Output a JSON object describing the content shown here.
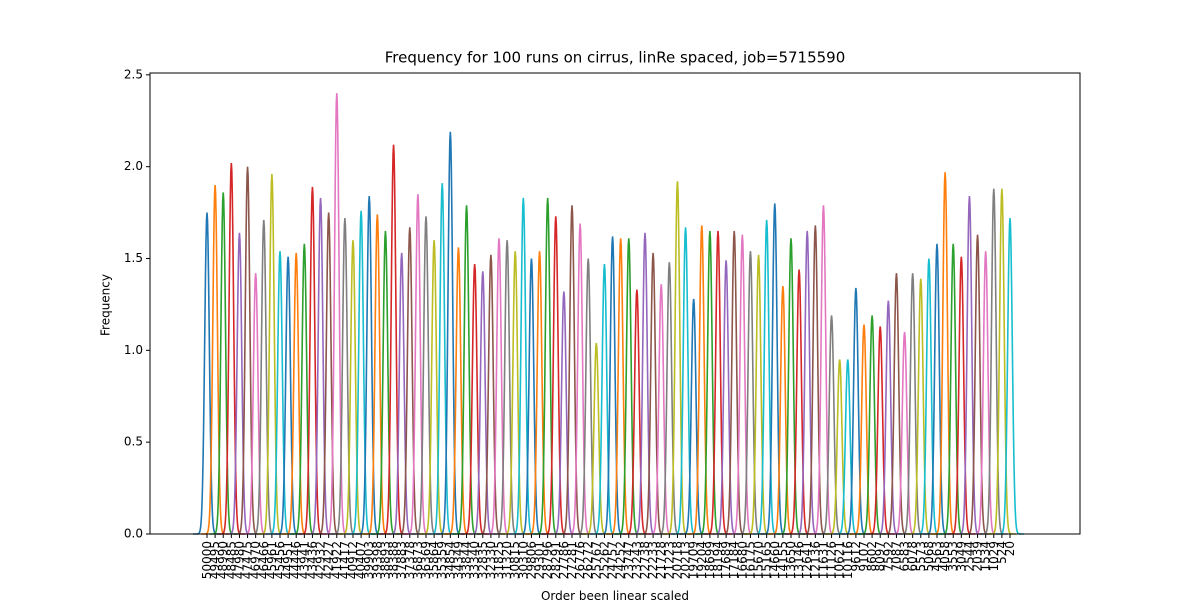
{
  "chart_data": {
    "type": "line",
    "title": "Frequency for 100 runs on cirrus, linRe spaced, job=5715590",
    "xlabel": "Order been linear scaled",
    "ylabel": "Frequency",
    "categories": [
      "50000",
      "49495",
      "48990",
      "48485",
      "47980",
      "47475",
      "46970",
      "46466",
      "45961",
      "45456",
      "44951",
      "44446",
      "43941",
      "43436",
      "42932",
      "42427",
      "41922",
      "41417",
      "40912",
      "40407",
      "39903",
      "39398",
      "38893",
      "38388",
      "37883",
      "37378",
      "36873",
      "36369",
      "35864",
      "35359",
      "34854",
      "34349",
      "33844",
      "33340",
      "32835",
      "32330",
      "31825",
      "31320",
      "30815",
      "30310",
      "29806",
      "29301",
      "28796",
      "28291",
      "27786",
      "27281",
      "26776",
      "26272",
      "25767",
      "25262",
      "24757",
      "24252",
      "23747",
      "23243",
      "22738",
      "22233",
      "21728",
      "21223",
      "20718",
      "20213",
      "19709",
      "19204",
      "18699",
      "18194",
      "17689",
      "17184",
      "16680",
      "16175",
      "15670",
      "15165",
      "14660",
      "14155",
      "13650",
      "13146",
      "12641",
      "12136",
      "11631",
      "11126",
      "10621",
      "10116",
      "9612",
      "9107",
      "8602",
      "8097",
      "7592",
      "7087",
      "6583",
      "6078",
      "5573",
      "5068",
      "4563",
      "4058",
      "3553",
      "3049",
      "2544",
      "2039",
      "1534",
      "1029",
      "524",
      "20"
    ],
    "values": [
      1.75,
      1.9,
      1.86,
      2.02,
      1.64,
      2.0,
      1.42,
      1.71,
      1.96,
      1.54,
      1.51,
      1.53,
      1.58,
      1.89,
      1.83,
      1.75,
      2.4,
      1.72,
      1.6,
      1.76,
      1.84,
      1.74,
      1.65,
      2.12,
      1.53,
      1.67,
      1.85,
      1.73,
      1.6,
      1.91,
      2.19,
      1.56,
      1.79,
      1.47,
      1.43,
      1.52,
      1.61,
      1.6,
      1.54,
      1.83,
      1.5,
      1.54,
      1.83,
      1.73,
      1.32,
      1.79,
      1.69,
      1.5,
      1.04,
      1.47,
      1.62,
      1.61,
      1.61,
      1.33,
      1.64,
      1.53,
      1.36,
      1.48,
      1.92,
      1.67,
      1.28,
      1.68,
      1.65,
      1.65,
      1.49,
      1.65,
      1.63,
      1.54,
      1.52,
      1.71,
      1.8,
      1.35,
      1.61,
      1.44,
      1.65,
      1.68,
      1.79,
      1.19,
      0.95,
      0.95,
      1.34,
      1.14,
      1.19,
      1.13,
      1.27,
      1.42,
      1.1,
      1.42,
      1.39,
      1.5,
      1.58,
      1.97,
      1.58,
      1.51,
      1.84,
      1.63,
      1.54,
      1.88,
      1.88,
      1.72
    ],
    "colors": [
      "#1f77b4",
      "#ff7f0e",
      "#2ca02c",
      "#d62728",
      "#9467bd",
      "#8c564b",
      "#e377c2",
      "#7f7f7f",
      "#bcbd22",
      "#17becf"
    ],
    "ylim": [
      0,
      2.51
    ],
    "yticks": [
      {
        "value": 0,
        "label": "0.0"
      },
      0.5,
      {
        "value": 1,
        "label": "1.0"
      },
      1.5,
      {
        "value": 2,
        "label": "2.0"
      },
      2.5
    ]
  }
}
